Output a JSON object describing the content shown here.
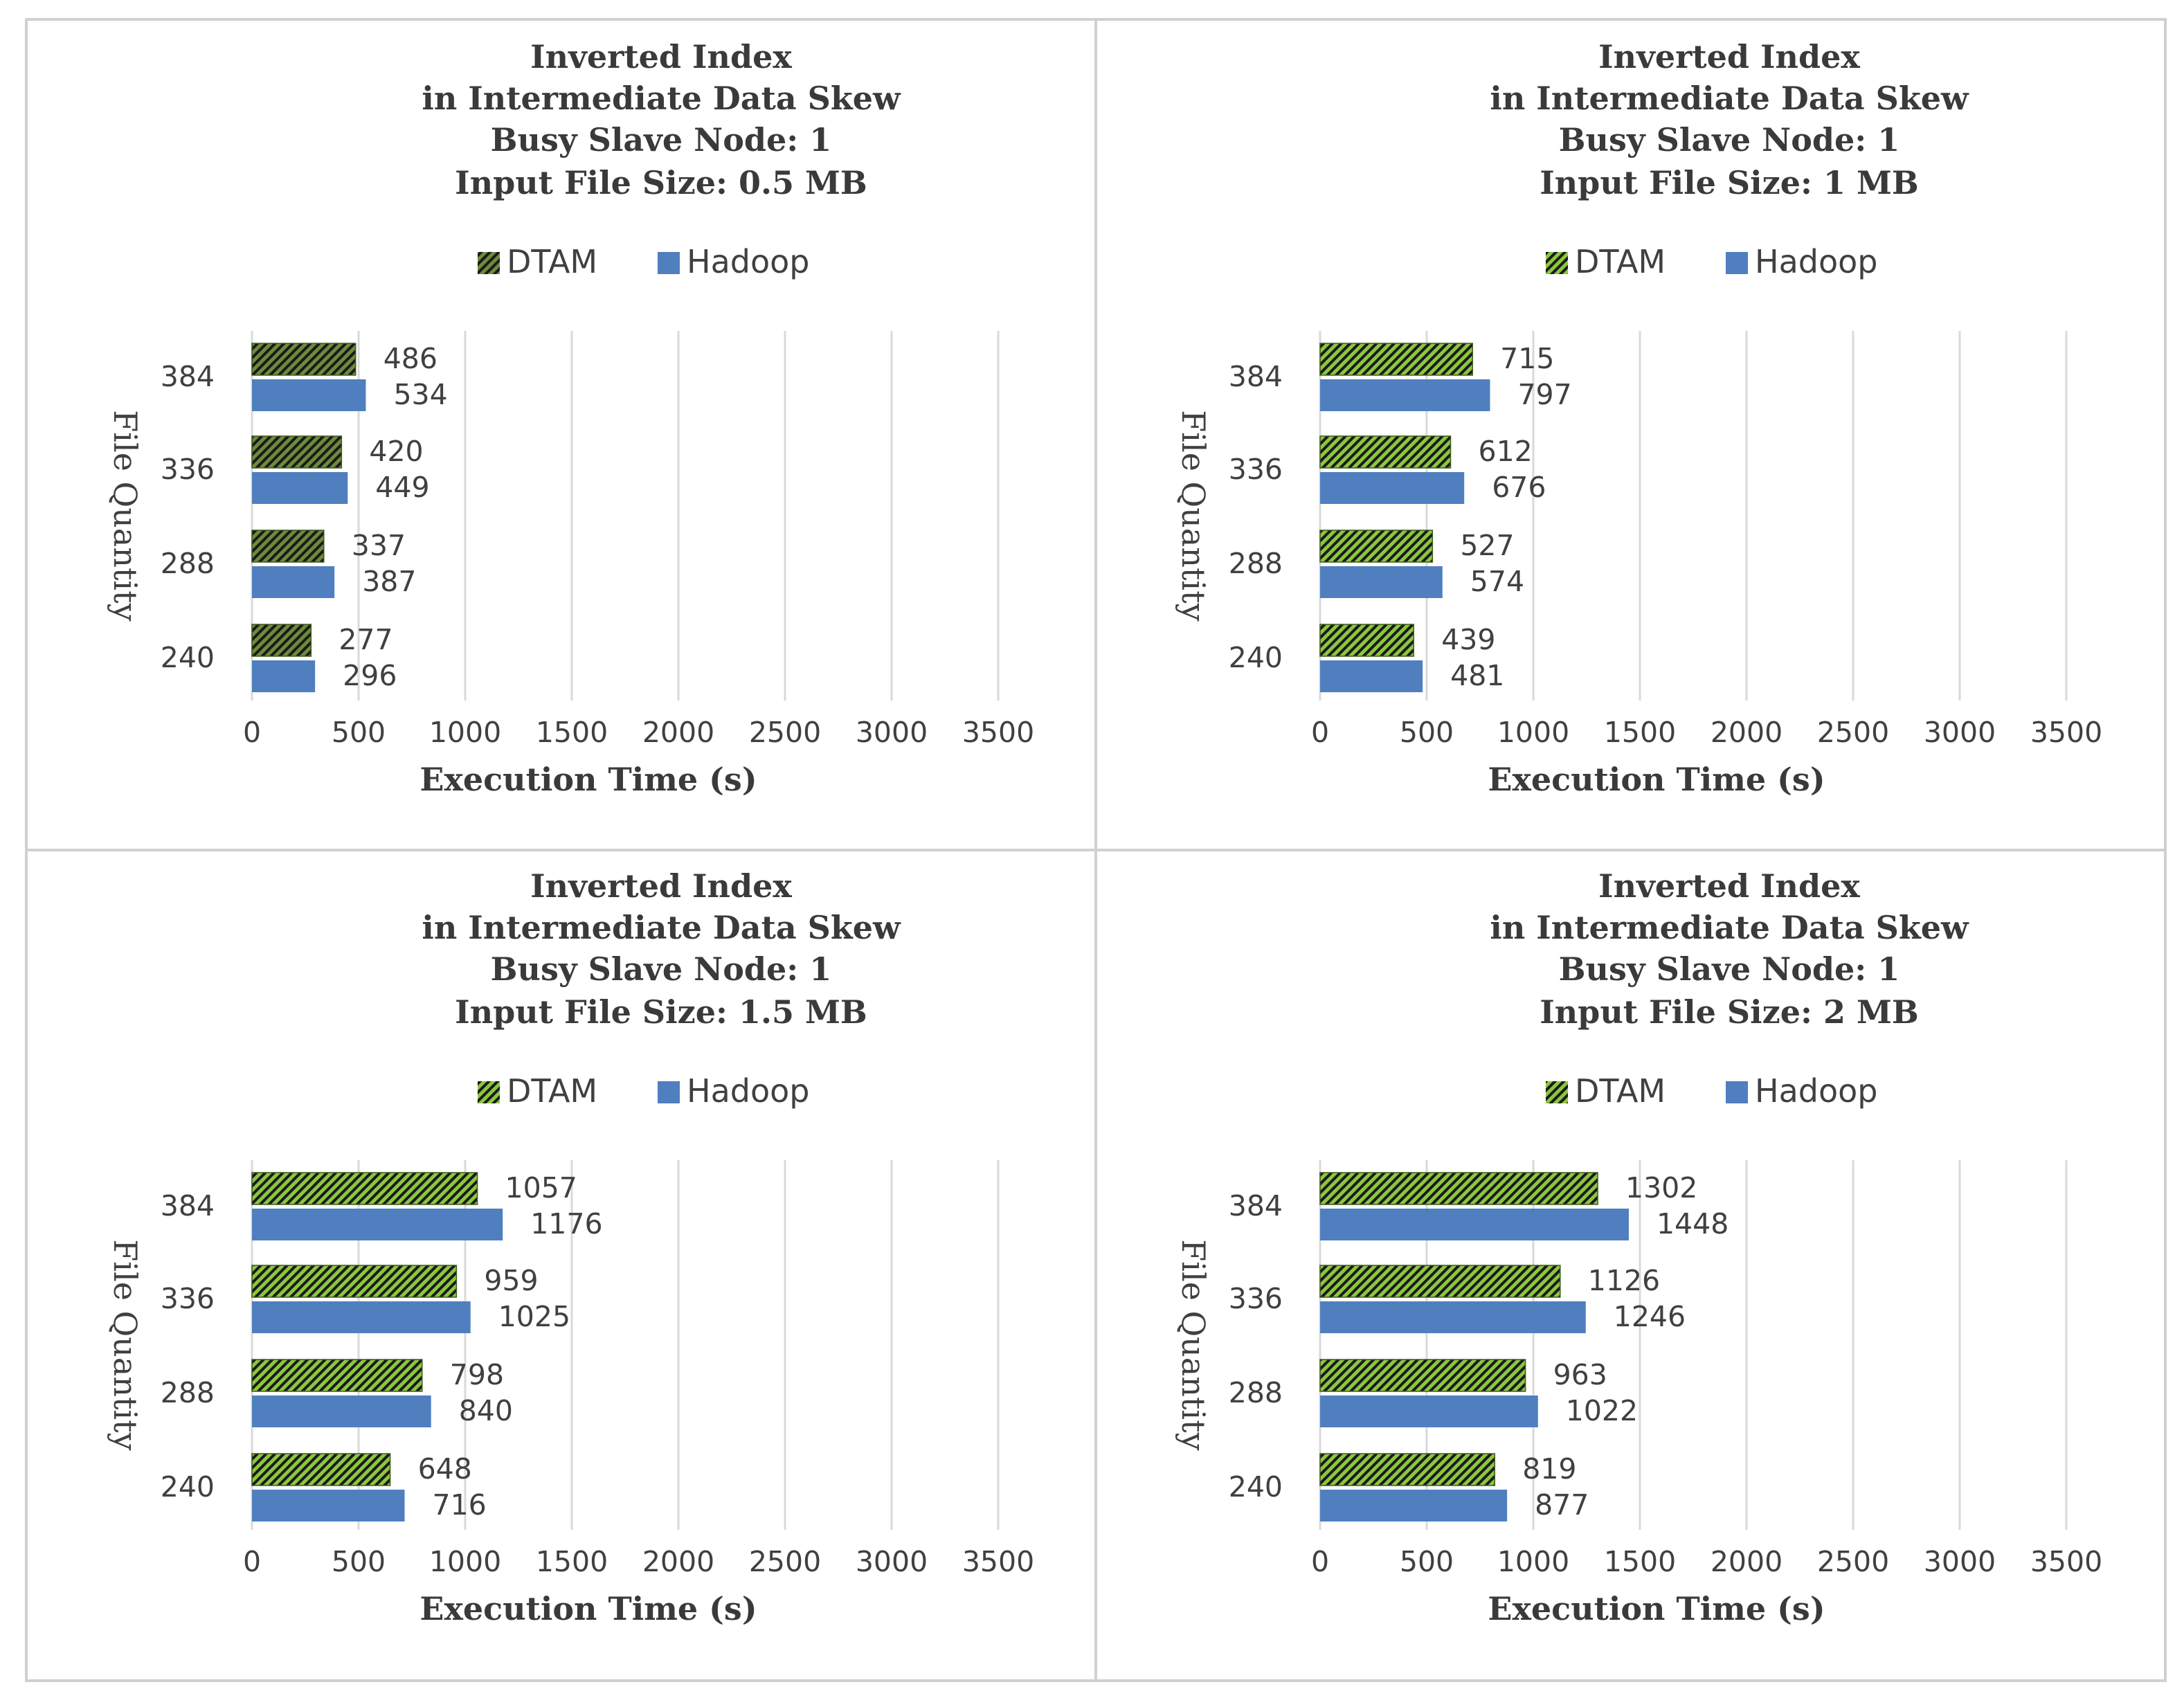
{
  "colors": {
    "dtam_light": "#8cc63f",
    "dtam_dark": "#6e8a3c",
    "hatch": "#1a1a1a",
    "hadoop": "#4f7fbf",
    "grid": "#d9d9d9",
    "border": "#d0d0d0",
    "text": "#404040"
  },
  "chart_data": [
    {
      "type": "bar",
      "orientation": "horizontal",
      "title": [
        "Inverted Index",
        "in Intermediate Data Skew",
        "Busy Slave Node: 1",
        "Input File Size: 0.5 MB"
      ],
      "legend": [
        "DTAM",
        "Hadoop"
      ],
      "categories": [
        "240",
        "288",
        "336",
        "384"
      ],
      "series": [
        {
          "name": "DTAM",
          "values": [
            277,
            337,
            420,
            486
          ]
        },
        {
          "name": "Hadoop",
          "values": [
            296,
            387,
            449,
            534
          ]
        }
      ],
      "xlabel": "Execution Time (s)",
      "ylabel": "File Quantity",
      "xlim": [
        0,
        3500
      ],
      "xticks": [
        "0",
        "500",
        "1000",
        "1500",
        "2000",
        "2500",
        "3000",
        "3500"
      ],
      "grid": true,
      "legend_position": "top"
    },
    {
      "type": "bar",
      "orientation": "horizontal",
      "title": [
        "Inverted Index",
        "in Intermediate Data Skew",
        "Busy Slave Node: 1",
        "Input File Size: 1 MB"
      ],
      "legend": [
        "DTAM",
        "Hadoop"
      ],
      "categories": [
        "240",
        "288",
        "336",
        "384"
      ],
      "series": [
        {
          "name": "DTAM",
          "values": [
            439,
            527,
            612,
            715
          ]
        },
        {
          "name": "Hadoop",
          "values": [
            481,
            574,
            676,
            797
          ]
        }
      ],
      "xlabel": "Execution Time (s)",
      "ylabel": "File Quantity",
      "xlim": [
        0,
        3500
      ],
      "xticks": [
        "0",
        "500",
        "1000",
        "1500",
        "2000",
        "2500",
        "3000",
        "3500"
      ],
      "grid": true,
      "legend_position": "top"
    },
    {
      "type": "bar",
      "orientation": "horizontal",
      "title": [
        "Inverted Index",
        "in Intermediate Data Skew",
        "Busy Slave Node: 1",
        "Input File Size: 1.5 MB"
      ],
      "legend": [
        "DTAM",
        "Hadoop"
      ],
      "categories": [
        "240",
        "288",
        "336",
        "384"
      ],
      "series": [
        {
          "name": "DTAM",
          "values": [
            648,
            798,
            959,
            1057
          ]
        },
        {
          "name": "Hadoop",
          "values": [
            716,
            840,
            1025,
            1176
          ]
        }
      ],
      "xlabel": "Execution Time (s)",
      "ylabel": "File Quantity",
      "xlim": [
        0,
        3500
      ],
      "xticks": [
        "0",
        "500",
        "1000",
        "1500",
        "2000",
        "2500",
        "3000",
        "3500"
      ],
      "grid": true,
      "legend_position": "top"
    },
    {
      "type": "bar",
      "orientation": "horizontal",
      "title": [
        "Inverted Index",
        "in Intermediate Data Skew",
        "Busy Slave Node: 1",
        "Input File Size: 2 MB"
      ],
      "legend": [
        "DTAM",
        "Hadoop"
      ],
      "categories": [
        "240",
        "288",
        "336",
        "384"
      ],
      "series": [
        {
          "name": "DTAM",
          "values": [
            819,
            963,
            1126,
            1302
          ]
        },
        {
          "name": "Hadoop",
          "values": [
            877,
            1022,
            1246,
            1448
          ]
        }
      ],
      "xlabel": "Execution Time (s)",
      "ylabel": "File Quantity",
      "xlim": [
        0,
        3500
      ],
      "xticks": [
        "0",
        "500",
        "1000",
        "1500",
        "2000",
        "2500",
        "3000",
        "3500"
      ],
      "grid": true,
      "legend_position": "top"
    }
  ]
}
